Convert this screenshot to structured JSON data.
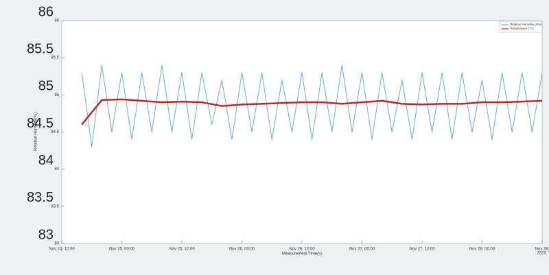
{
  "chart_data": {
    "type": "line",
    "y_label": "Relative Humidity(%)",
    "x_label": "Measurement Time(s)",
    "x_year": "2023",
    "ylim": [
      83,
      86
    ],
    "yticks": [
      83,
      83.5,
      84,
      84.5,
      85,
      85.5,
      86
    ],
    "xlim": [
      0,
      96
    ],
    "xticks": [
      {
        "value": 0,
        "label": "Nov 24, 12:00"
      },
      {
        "value": 12,
        "label": "Nov 25, 00:00"
      },
      {
        "value": 24,
        "label": "Nov 25, 12:00"
      },
      {
        "value": 36,
        "label": "Nov 26, 00:00"
      },
      {
        "value": 48,
        "label": "Nov 26, 12:00"
      },
      {
        "value": 60,
        "label": "Nov 27, 00:00"
      },
      {
        "value": 72,
        "label": "Nov 27, 12:00"
      },
      {
        "value": 84,
        "label": "Nov 28, 00:00"
      },
      {
        "value": 96,
        "label": "Nov 28,"
      }
    ],
    "series": [
      {
        "name": "Relative Humidity (H%)",
        "color": "#5aaee0",
        "width": 1,
        "x": [
          4,
          6,
          8,
          10,
          12,
          14,
          16,
          18,
          20,
          22,
          24,
          26,
          28,
          30,
          32,
          34,
          36,
          38,
          40,
          42,
          44,
          46,
          48,
          50,
          52,
          54,
          56,
          58,
          60,
          62,
          64,
          66,
          68,
          70,
          72,
          74,
          76,
          78,
          80,
          82,
          84,
          86,
          88,
          90,
          92,
          94,
          96
        ],
        "values": [
          85.3,
          84.3,
          85.4,
          84.5,
          85.3,
          84.4,
          85.3,
          84.5,
          85.4,
          84.5,
          85.3,
          84.4,
          85.3,
          84.6,
          85.2,
          84.4,
          85.3,
          84.5,
          85.3,
          84.4,
          85.2,
          84.5,
          85.3,
          84.4,
          85.3,
          84.5,
          85.4,
          84.5,
          85.3,
          84.4,
          85.3,
          84.5,
          85.2,
          84.4,
          85.3,
          84.5,
          85.3,
          84.4,
          85.3,
          84.5,
          85.2,
          84.4,
          85.3,
          84.5,
          85.3,
          84.5,
          85.3
        ]
      },
      {
        "name": "Temperature (°C)",
        "color": "#c8231e",
        "width": 2.5,
        "x": [
          4,
          8,
          12,
          16,
          20,
          24,
          28,
          32,
          36,
          40,
          44,
          48,
          52,
          56,
          60,
          64,
          68,
          72,
          76,
          80,
          84,
          88,
          92,
          96
        ],
        "values": [
          84.6,
          84.93,
          84.94,
          84.92,
          84.9,
          84.91,
          84.9,
          84.85,
          84.87,
          84.88,
          84.89,
          84.9,
          84.9,
          84.88,
          84.9,
          84.92,
          84.88,
          84.87,
          84.88,
          84.88,
          84.9,
          84.9,
          84.91,
          84.92
        ]
      }
    ]
  }
}
